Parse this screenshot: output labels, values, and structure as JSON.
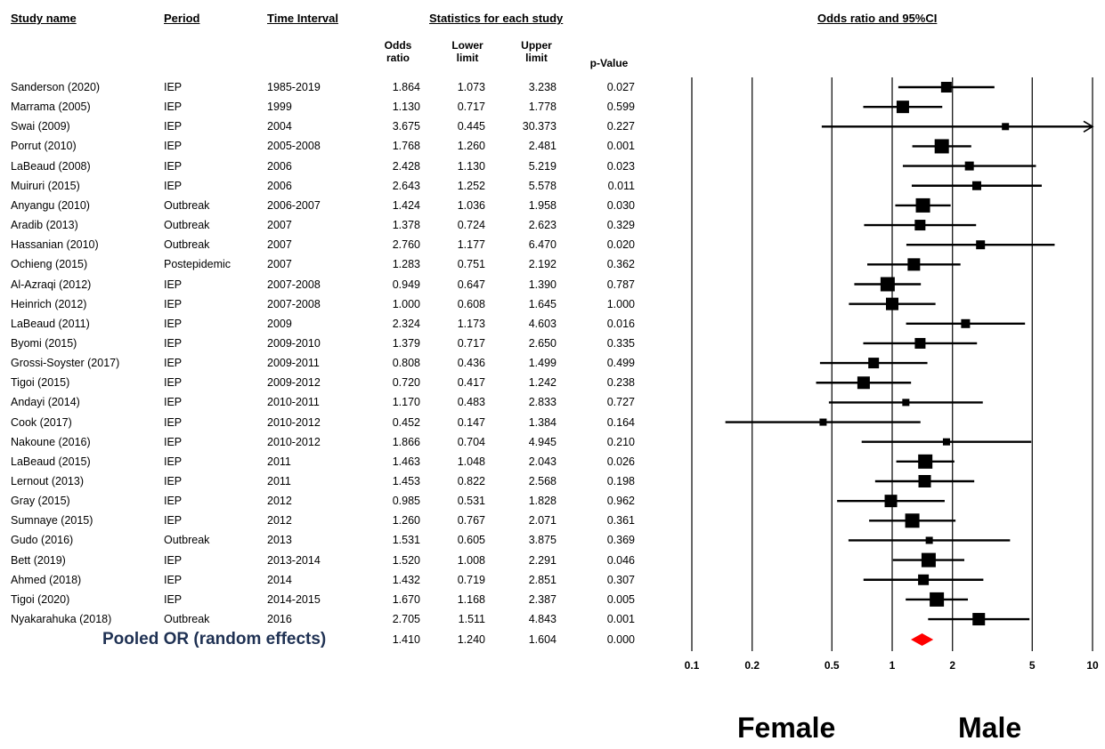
{
  "headers": {
    "study_name": "Study name",
    "period": "Period",
    "time_interval": "Time Interval",
    "stats": "Statistics for each study",
    "plot_title": "Odds ratio and 95%CI",
    "or_l1": "Odds",
    "or_l2": "ratio",
    "lo_l1": "Lower",
    "lo_l2": "limit",
    "up_l1": "Upper",
    "up_l2": "limit",
    "pval": "p-Value"
  },
  "rows": [
    {
      "name": "Sanderson (2020)",
      "period": "IEP",
      "interval": "1985-2019",
      "or": "1.864",
      "lo": "1.073",
      "up": "3.238",
      "p": "0.027"
    },
    {
      "name": "Marrama (2005)",
      "period": "IEP",
      "interval": "1999",
      "or": "1.130",
      "lo": "0.717",
      "up": "1.778",
      "p": "0.599"
    },
    {
      "name": "Swai (2009)",
      "period": "IEP",
      "interval": "2004",
      "or": "3.675",
      "lo": "0.445",
      "up": "30.373",
      "p": "0.227"
    },
    {
      "name": "Porrut (2010)",
      "period": "IEP",
      "interval": "2005-2008",
      "or": "1.768",
      "lo": "1.260",
      "up": "2.481",
      "p": "0.001"
    },
    {
      "name": "LaBeaud (2008)",
      "period": "IEP",
      "interval": "2006",
      "or": "2.428",
      "lo": "1.130",
      "up": "5.219",
      "p": "0.023"
    },
    {
      "name": "Muiruri (2015)",
      "period": "IEP",
      "interval": "2006",
      "or": "2.643",
      "lo": "1.252",
      "up": "5.578",
      "p": "0.011"
    },
    {
      "name": "Anyangu (2010)",
      "period": "Outbreak",
      "interval": "2006-2007",
      "or": "1.424",
      "lo": "1.036",
      "up": "1.958",
      "p": "0.030"
    },
    {
      "name": "Aradib (2013)",
      "period": "Outbreak",
      "interval": "2007",
      "or": "1.378",
      "lo": "0.724",
      "up": "2.623",
      "p": "0.329"
    },
    {
      "name": "Hassanian (2010)",
      "period": "Outbreak",
      "interval": "2007",
      "or": "2.760",
      "lo": "1.177",
      "up": "6.470",
      "p": "0.020"
    },
    {
      "name": "Ochieng (2015)",
      "period": "Postepidemic",
      "interval": "2007",
      "or": "1.283",
      "lo": "0.751",
      "up": "2.192",
      "p": "0.362"
    },
    {
      "name": "Al-Azraqi (2012)",
      "period": "IEP",
      "interval": "2007-2008",
      "or": "0.949",
      "lo": "0.647",
      "up": "1.390",
      "p": "0.787"
    },
    {
      "name": "Heinrich (2012)",
      "period": "IEP",
      "interval": "2007-2008",
      "or": "1.000",
      "lo": "0.608",
      "up": "1.645",
      "p": "1.000"
    },
    {
      "name": "LaBeaud (2011)",
      "period": "IEP",
      "interval": "2009",
      "or": "2.324",
      "lo": "1.173",
      "up": "4.603",
      "p": "0.016"
    },
    {
      "name": "Byomi (2015)",
      "period": "IEP",
      "interval": "2009-2010",
      "or": "1.379",
      "lo": "0.717",
      "up": "2.650",
      "p": "0.335"
    },
    {
      "name": "Grossi-Soyster (2017)",
      "period": "IEP",
      "interval": "2009-2011",
      "or": "0.808",
      "lo": "0.436",
      "up": "1.499",
      "p": "0.499"
    },
    {
      "name": "Tigoi (2015)",
      "period": "IEP",
      "interval": "2009-2012",
      "or": "0.720",
      "lo": "0.417",
      "up": "1.242",
      "p": "0.238"
    },
    {
      "name": "Andayi (2014)",
      "period": "IEP",
      "interval": "2010-2011",
      "or": "1.170",
      "lo": "0.483",
      "up": "2.833",
      "p": "0.727"
    },
    {
      "name": "Cook (2017)",
      "period": "IEP",
      "interval": "2010-2012",
      "or": "0.452",
      "lo": "0.147",
      "up": "1.384",
      "p": "0.164"
    },
    {
      "name": "Nakoune (2016)",
      "period": "IEP",
      "interval": "2010-2012",
      "or": "1.866",
      "lo": "0.704",
      "up": "4.945",
      "p": "0.210"
    },
    {
      "name": "LaBeaud (2015)",
      "period": "IEP",
      "interval": "2011",
      "or": "1.463",
      "lo": "1.048",
      "up": "2.043",
      "p": "0.026"
    },
    {
      "name": "Lernout (2013)",
      "period": "IEP",
      "interval": "2011",
      "or": "1.453",
      "lo": "0.822",
      "up": "2.568",
      "p": "0.198"
    },
    {
      "name": "Gray (2015)",
      "period": "IEP",
      "interval": "2012",
      "or": "0.985",
      "lo": "0.531",
      "up": "1.828",
      "p": "0.962"
    },
    {
      "name": "Sumnaye (2015)",
      "period": "IEP",
      "interval": "2012",
      "or": "1.260",
      "lo": "0.767",
      "up": "2.071",
      "p": "0.361"
    },
    {
      "name": "Gudo (2016)",
      "period": "Outbreak",
      "interval": "2013",
      "or": "1.531",
      "lo": "0.605",
      "up": "3.875",
      "p": "0.369"
    },
    {
      "name": "Bett (2019)",
      "period": "IEP",
      "interval": "2013-2014",
      "or": "1.520",
      "lo": "1.008",
      "up": "2.291",
      "p": "0.046"
    },
    {
      "name": "Ahmed (2018)",
      "period": "IEP",
      "interval": "2014",
      "or": "1.432",
      "lo": "0.719",
      "up": "2.851",
      "p": "0.307"
    },
    {
      "name": "Tigoi (2020)",
      "period": "IEP",
      "interval": "2014-2015",
      "or": "1.670",
      "lo": "1.168",
      "up": "2.387",
      "p": "0.005"
    },
    {
      "name": "Nyakarahuka (2018)",
      "period": "Outbreak",
      "interval": "2016",
      "or": "2.705",
      "lo": "1.511",
      "up": "4.843",
      "p": "0.001"
    }
  ],
  "pooled": {
    "label": "Pooled OR (random effects)",
    "or": "1.410",
    "lo": "1.240",
    "up": "1.604",
    "p": "0.000"
  },
  "side_labels": {
    "left": "Female",
    "right": "Male"
  },
  "chart_data": {
    "type": "forest",
    "scale": "log",
    "xlim": [
      0.1,
      10
    ],
    "ticks": [
      0.1,
      0.2,
      0.5,
      1,
      2,
      5,
      10
    ],
    "tick_labels": [
      "0.1",
      "0.2",
      "0.5",
      "1",
      "2",
      "5",
      "10"
    ],
    "title": "Odds ratio and 95%CI",
    "weights": [
      2,
      2.5,
      1,
      3,
      1.5,
      1.5,
      3,
      2,
      1.5,
      2.5,
      3,
      2.5,
      1.5,
      2,
      2,
      2.5,
      1,
      1,
      1,
      3,
      2.5,
      2.5,
      3,
      1,
      3,
      2,
      3,
      2.5
    ],
    "pooled": {
      "or": 1.41,
      "lo": 1.24,
      "up": 1.604
    },
    "colors": {
      "pooled": "#ff0000",
      "marks": "#000000"
    }
  }
}
